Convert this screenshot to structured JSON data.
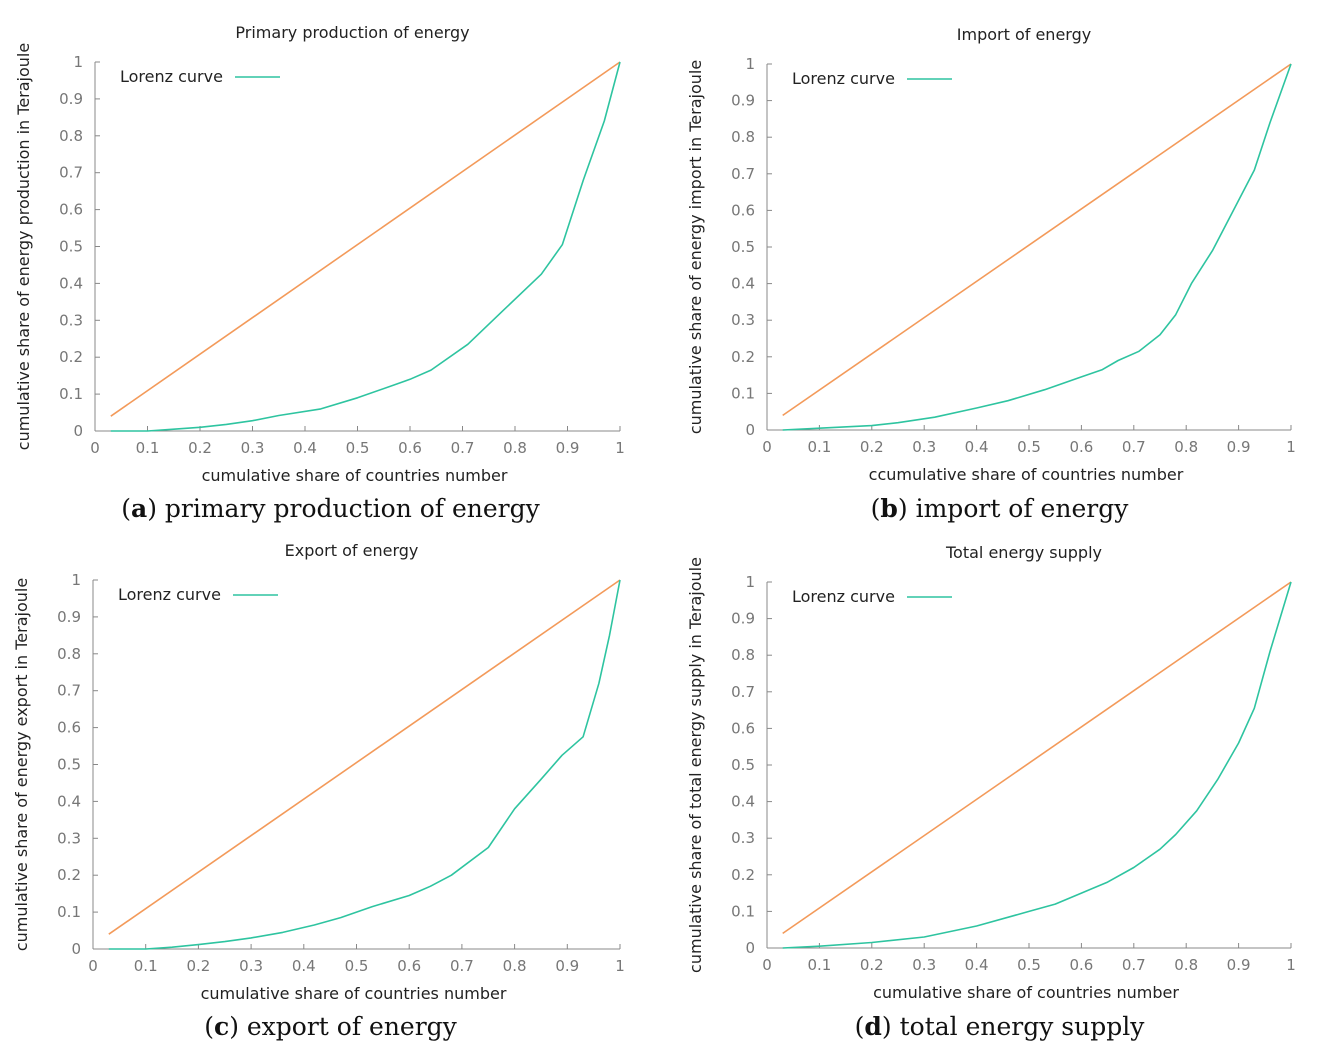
{
  "colors": {
    "lorenz": "#2ec4a0",
    "equality": "#f39a5a",
    "axis": "#888888"
  },
  "captions": [
    {
      "letter": "a",
      "text": "primary production of energy"
    },
    {
      "letter": "b",
      "text": "import of energy"
    },
    {
      "letter": "c",
      "text": "export of energy"
    },
    {
      "letter": "d",
      "text": "total energy supply"
    }
  ],
  "chart_data": [
    {
      "type": "line",
      "title": "Primary production of energy",
      "xlabel": "cumulative share of countries number",
      "ylabel": "cumulative share of energy production in Terajoule",
      "xlim": [
        0,
        1
      ],
      "ylim": [
        0,
        1
      ],
      "xticks": [
        "0",
        "0.1",
        "0.2",
        "0.3",
        "0.4",
        "0.5",
        "0.6",
        "0.7",
        "0.8",
        "0.9",
        "1"
      ],
      "yticks": [
        "0",
        "0.1",
        "0.2",
        "0.3",
        "0.4",
        "0.5",
        "0.6",
        "0.7",
        "0.8",
        "0.9",
        "1"
      ],
      "legend": {
        "label": "Lorenz curve",
        "position": "top-left"
      },
      "series": [
        {
          "name": "equality line",
          "x": [
            0.03,
            1.0
          ],
          "y": [
            0.04,
            1.0
          ]
        },
        {
          "name": "Lorenz curve",
          "x": [
            0.03,
            0.1,
            0.15,
            0.2,
            0.25,
            0.3,
            0.35,
            0.43,
            0.5,
            0.57,
            0.6,
            0.64,
            0.71,
            0.78,
            0.85,
            0.89,
            0.93,
            0.97,
            1.0
          ],
          "y": [
            0.0,
            0.0,
            0.005,
            0.01,
            0.018,
            0.028,
            0.042,
            0.06,
            0.09,
            0.125,
            0.14,
            0.165,
            0.235,
            0.33,
            0.425,
            0.505,
            0.68,
            0.84,
            1.0
          ]
        }
      ]
    },
    {
      "type": "line",
      "title": "Import of energy",
      "xlabel": "ccumulative share of countries number",
      "ylabel": "cumulative share of energy import in Terajoule",
      "xlim": [
        0,
        1
      ],
      "ylim": [
        0,
        1
      ],
      "xticks": [
        "0",
        "0.1",
        "0.2",
        "0.3",
        "0.4",
        "0.5",
        "0.6",
        "0.7",
        "0.8",
        "0.9",
        "1"
      ],
      "yticks": [
        "0",
        "0.1",
        "0.2",
        "0.3",
        "0.4",
        "0.5",
        "0.6",
        "0.7",
        "0.8",
        "0.9",
        "1"
      ],
      "legend": {
        "label": "Lorenz curve",
        "position": "top-left"
      },
      "series": [
        {
          "name": "equality line",
          "x": [
            0.03,
            1.0
          ],
          "y": [
            0.04,
            1.0
          ]
        },
        {
          "name": "Lorenz curve",
          "x": [
            0.03,
            0.1,
            0.2,
            0.25,
            0.32,
            0.4,
            0.46,
            0.53,
            0.6,
            0.64,
            0.67,
            0.71,
            0.75,
            0.78,
            0.81,
            0.85,
            0.89,
            0.93,
            0.96,
            1.0
          ],
          "y": [
            0.0,
            0.005,
            0.012,
            0.02,
            0.035,
            0.06,
            0.08,
            0.11,
            0.145,
            0.165,
            0.19,
            0.215,
            0.26,
            0.315,
            0.4,
            0.49,
            0.6,
            0.71,
            0.84,
            1.0
          ]
        }
      ]
    },
    {
      "type": "line",
      "title": "Export of energy",
      "xlabel": "cumulative share of countries number",
      "ylabel": "cumulative share of energy export in Terajoule",
      "xlim": [
        0,
        1
      ],
      "ylim": [
        0,
        1
      ],
      "xticks": [
        "0",
        "0.1",
        "0.2",
        "0.3",
        "0.4",
        "0.5",
        "0.6",
        "0.7",
        "0.8",
        "0.9",
        "1"
      ],
      "yticks": [
        "0",
        "0.1",
        "0.2",
        "0.3",
        "0.4",
        "0.5",
        "0.6",
        "0.7",
        "0.8",
        "0.9",
        "1"
      ],
      "legend": {
        "label": "Lorenz curve",
        "position": "top-left"
      },
      "series": [
        {
          "name": "equality line",
          "x": [
            0.03,
            1.0
          ],
          "y": [
            0.04,
            1.0
          ]
        },
        {
          "name": "Lorenz curve",
          "x": [
            0.03,
            0.1,
            0.15,
            0.2,
            0.25,
            0.3,
            0.36,
            0.42,
            0.47,
            0.53,
            0.6,
            0.64,
            0.68,
            0.75,
            0.8,
            0.85,
            0.89,
            0.93,
            0.96,
            0.98,
            1.0
          ],
          "y": [
            0.0,
            0.0,
            0.005,
            0.012,
            0.02,
            0.03,
            0.045,
            0.065,
            0.085,
            0.115,
            0.145,
            0.17,
            0.2,
            0.275,
            0.38,
            0.46,
            0.525,
            0.575,
            0.72,
            0.85,
            1.0
          ]
        }
      ]
    },
    {
      "type": "line",
      "title": "Total energy supply",
      "xlabel": "cumulative share of countries number",
      "ylabel": "cumulative share of total energy supply in Terajoule",
      "xlim": [
        0,
        1
      ],
      "ylim": [
        0,
        1
      ],
      "xticks": [
        "0",
        "0.1",
        "0.2",
        "0.3",
        "0.4",
        "0.5",
        "0.6",
        "0.7",
        "0.8",
        "0.9",
        "1"
      ],
      "yticks": [
        "0",
        "0.1",
        "0.2",
        "0.3",
        "0.4",
        "0.5",
        "0.6",
        "0.7",
        "0.8",
        "0.9",
        "1"
      ],
      "legend": {
        "label": "Lorenz curve",
        "position": "top-left"
      },
      "series": [
        {
          "name": "equality line",
          "x": [
            0.03,
            1.0
          ],
          "y": [
            0.04,
            1.0
          ]
        },
        {
          "name": "Lorenz curve",
          "x": [
            0.03,
            0.1,
            0.2,
            0.3,
            0.4,
            0.5,
            0.55,
            0.6,
            0.65,
            0.7,
            0.75,
            0.78,
            0.82,
            0.86,
            0.9,
            0.93,
            0.96,
            1.0
          ],
          "y": [
            0.0,
            0.005,
            0.015,
            0.03,
            0.06,
            0.1,
            0.12,
            0.15,
            0.18,
            0.22,
            0.27,
            0.31,
            0.375,
            0.46,
            0.56,
            0.655,
            0.81,
            1.0
          ]
        }
      ]
    }
  ]
}
